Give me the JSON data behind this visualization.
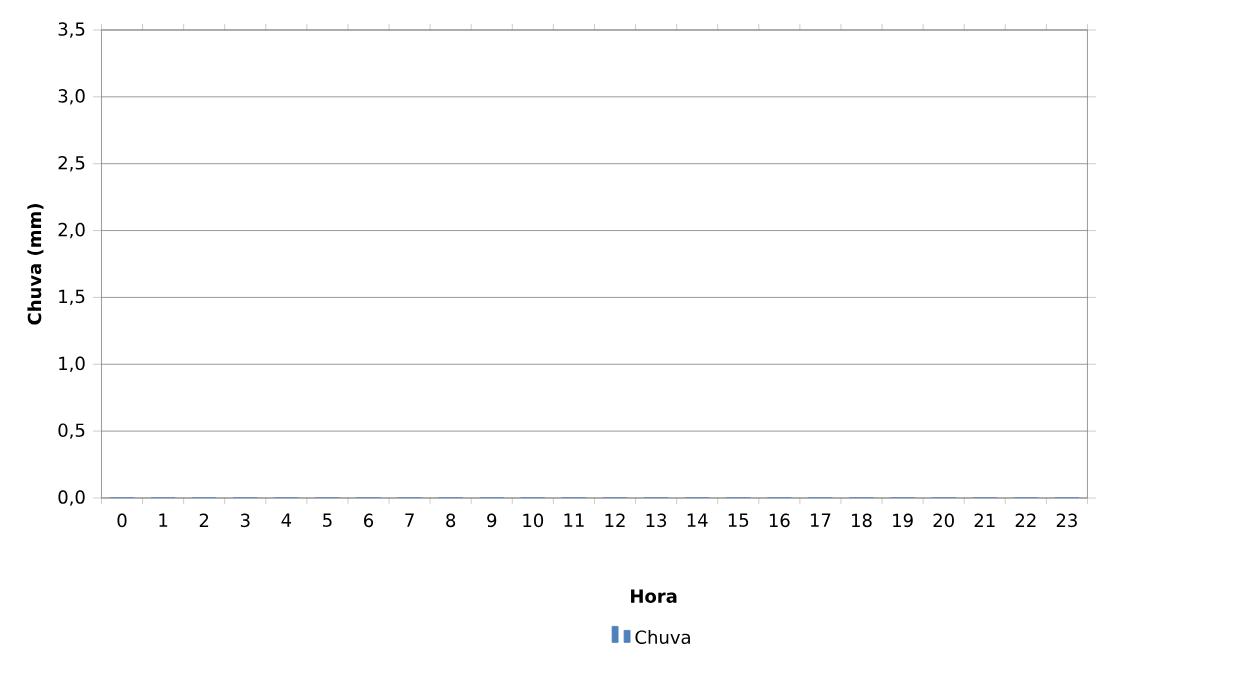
{
  "chart_data": {
    "type": "bar",
    "categories": [
      "0",
      "1",
      "2",
      "3",
      "4",
      "5",
      "6",
      "7",
      "8",
      "9",
      "10",
      "11",
      "12",
      "13",
      "14",
      "15",
      "16",
      "17",
      "18",
      "19",
      "20",
      "21",
      "22",
      "23"
    ],
    "series": [
      {
        "name": "Chuva",
        "color": "#4f81bd",
        "values": [
          0,
          0,
          0,
          0,
          0,
          0,
          0,
          0,
          0,
          0,
          0,
          0,
          0,
          0,
          0,
          0,
          0,
          0,
          0,
          0,
          0,
          0,
          0,
          0
        ]
      }
    ],
    "xlabel": "Hora",
    "ylabel": "Chuva (mm)",
    "ylim": [
      0,
      3.5
    ],
    "yticks": [
      {
        "value": 0,
        "label": "0,0"
      },
      {
        "value": 0.5,
        "label": "0,5"
      },
      {
        "value": 1,
        "label": "1,0"
      },
      {
        "value": 1.5,
        "label": "1,5"
      },
      {
        "value": 2,
        "label": "2,0"
      },
      {
        "value": 2.5,
        "label": "2,5"
      },
      {
        "value": 3,
        "label": "3,0"
      },
      {
        "value": 3.5,
        "label": "3,5"
      }
    ],
    "grid": "y",
    "legend": "bottom"
  }
}
